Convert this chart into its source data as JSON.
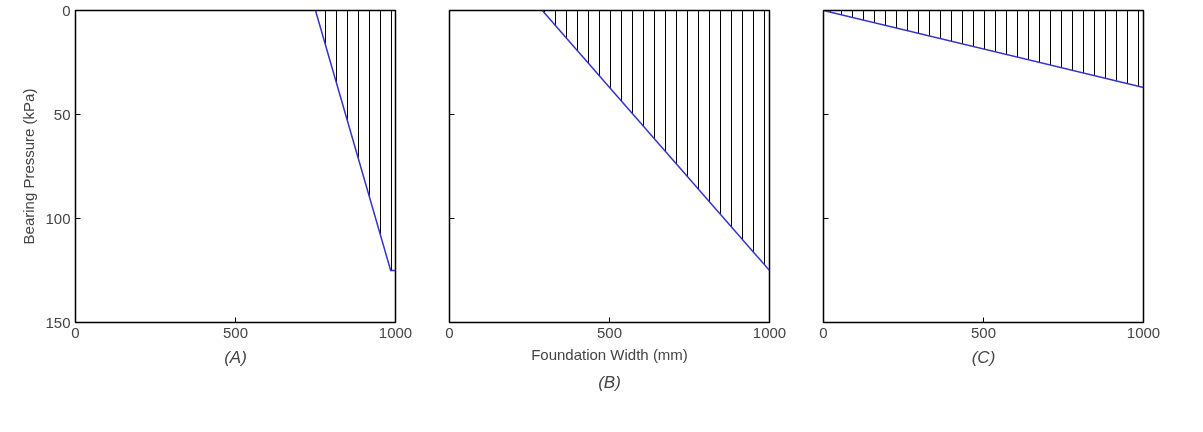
{
  "chart_data": [
    {
      "type": "area",
      "ylabel": "Bearing Pressure (kPa)",
      "annotations": [
        "(A)"
      ],
      "x": [
        750,
        985,
        1000
      ],
      "series": [
        {
          "color": "#3333cc",
          "values": [
            0,
            125,
            125
          ]
        }
      ],
      "xlim": [
        0,
        1000
      ],
      "ylim": [
        150,
        0
      ],
      "xticks": [
        0,
        500,
        1000
      ],
      "yticks": [
        0,
        50,
        100,
        150
      ],
      "grid": false
    },
    {
      "type": "area",
      "xlabel": "Foundation Width (mm)",
      "annotations": [
        "(B)"
      ],
      "x": [
        290,
        1000
      ],
      "series": [
        {
          "color": "#3333cc",
          "values": [
            0,
            125
          ]
        }
      ],
      "xlim": [
        0,
        1000
      ],
      "ylim": [
        150,
        0
      ],
      "xticks": [
        0,
        500,
        1000
      ],
      "yticks": [
        0,
        50,
        100,
        150
      ],
      "tick_labels": "x",
      "grid": false
    },
    {
      "type": "area",
      "annotations": [
        "(C)"
      ],
      "x": [
        0,
        1000
      ],
      "series": [
        {
          "color": "#3333cc",
          "values": [
            0,
            37
          ]
        }
      ],
      "xlim": [
        0,
        1000
      ],
      "ylim": [
        150,
        0
      ],
      "xticks": [
        0,
        500,
        1000
      ],
      "yticks": [
        0,
        50,
        100,
        150
      ],
      "tick_labels": "x",
      "grid": false
    }
  ]
}
